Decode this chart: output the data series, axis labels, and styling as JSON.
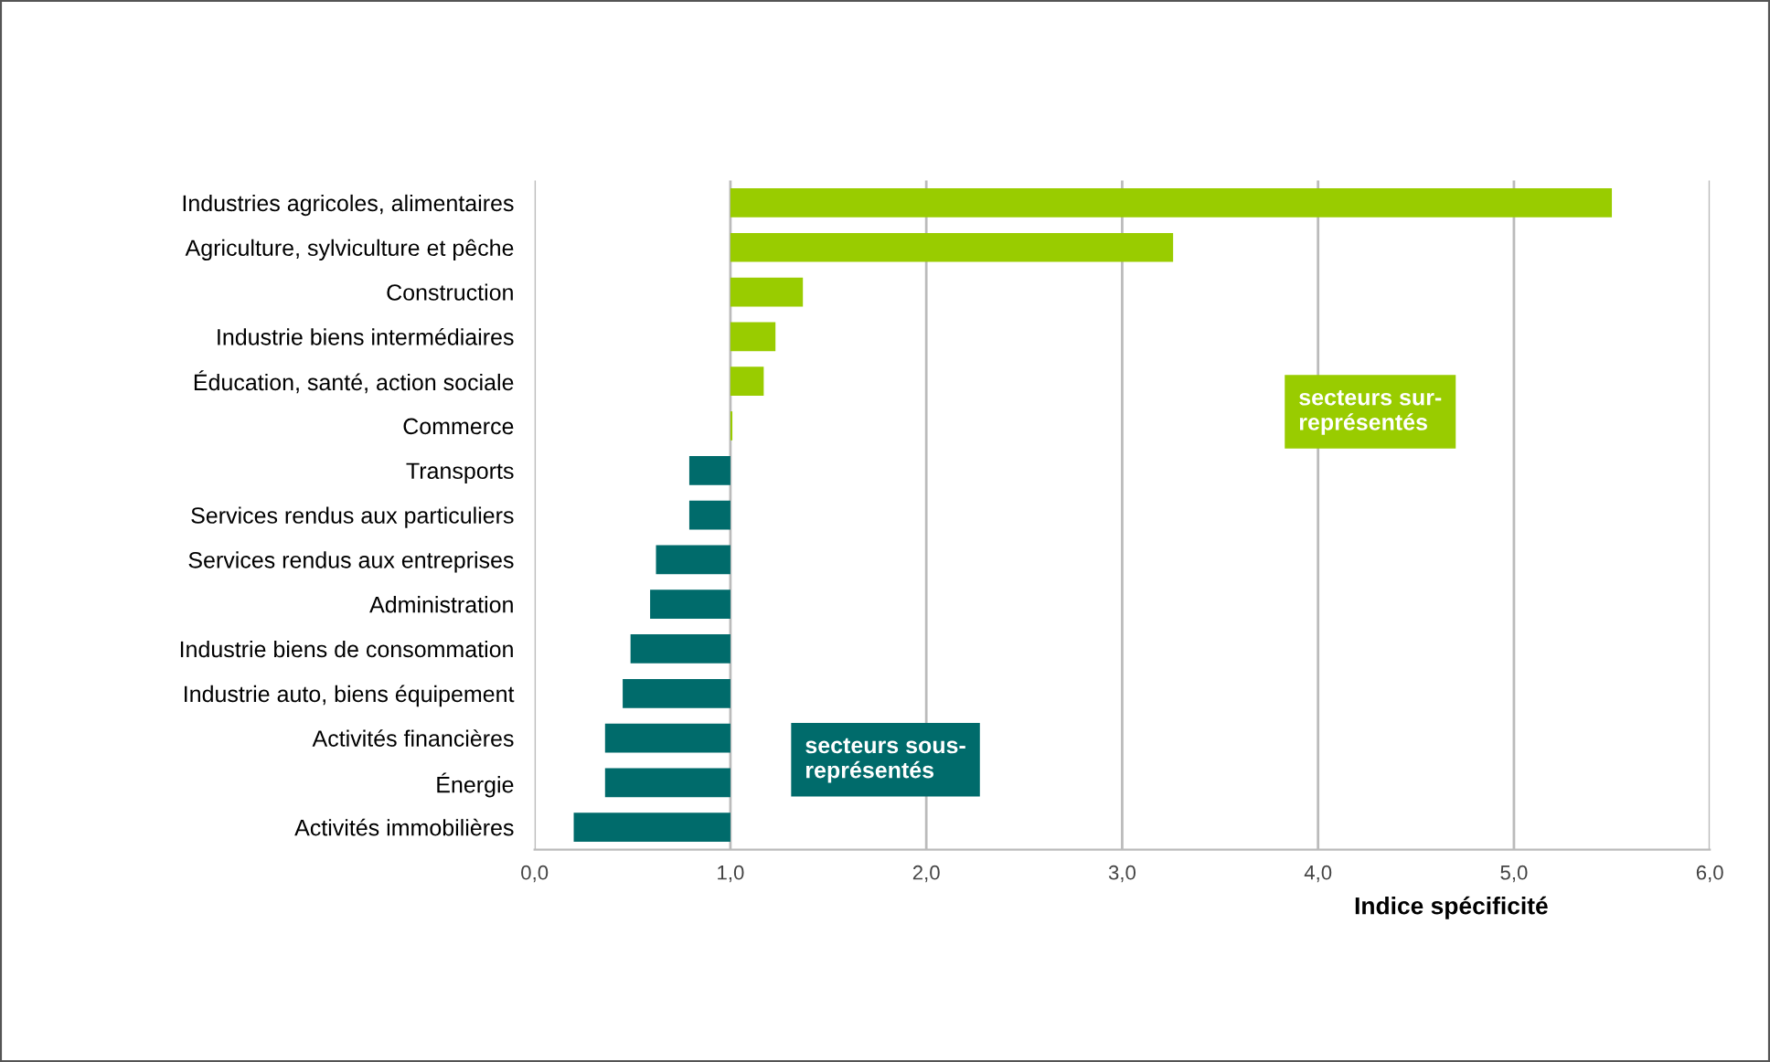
{
  "chart_data": {
    "type": "bar",
    "orientation": "horizontal",
    "categories": [
      "Industries agricoles, alimentaires",
      "Agriculture, sylviculture et pêche",
      "Construction",
      "Industrie biens intermédiaires",
      "Éducation, santé, action sociale",
      "Commerce",
      "Transports",
      "Services rendus aux particuliers",
      "Services rendus aux entreprises",
      "Administration",
      "Industrie biens de consommation",
      "Industrie auto, biens équipement",
      "Activités financières",
      "Énergie",
      "Activités immobilières"
    ],
    "series": [
      {
        "color": "#99cc00",
        "base": [
          1.0,
          1.0,
          1.0,
          1.0,
          1.0,
          1.0,
          null,
          null,
          null,
          null,
          null,
          null,
          null,
          null,
          null
        ],
        "values": [
          4.5,
          2.26,
          0.37,
          0.23,
          0.17,
          0.01,
          null,
          null,
          null,
          null,
          null,
          null,
          null,
          null,
          null
        ]
      },
      {
        "color": "#006b6b",
        "base": [
          null,
          null,
          null,
          null,
          null,
          null,
          1.0,
          1.0,
          1.0,
          1.0,
          1.0,
          1.0,
          1.0,
          1.0,
          1.0
        ],
        "values": [
          null,
          null,
          null,
          null,
          null,
          null,
          -0.21,
          -0.21,
          -0.38,
          -0.41,
          -0.51,
          -0.55,
          -0.64,
          -0.64,
          -0.8
        ]
      }
    ],
    "xlim": [
      0,
      6
    ],
    "xticks": [
      {
        "value": 0,
        "label": "0,0"
      },
      {
        "value": 1,
        "label": "1,0"
      },
      {
        "value": 2,
        "label": "2,0"
      },
      {
        "value": 3,
        "label": "3,0"
      },
      {
        "value": 4,
        "label": "4,0"
      },
      {
        "value": 5,
        "label": "5,0"
      },
      {
        "value": 6,
        "label": "6,0"
      }
    ],
    "xlabel": "Indice spécificité",
    "grid": "x",
    "annotations": [
      "secteurs sur-\nreprésentés",
      "secteurs sous-\nreprésentés"
    ]
  }
}
